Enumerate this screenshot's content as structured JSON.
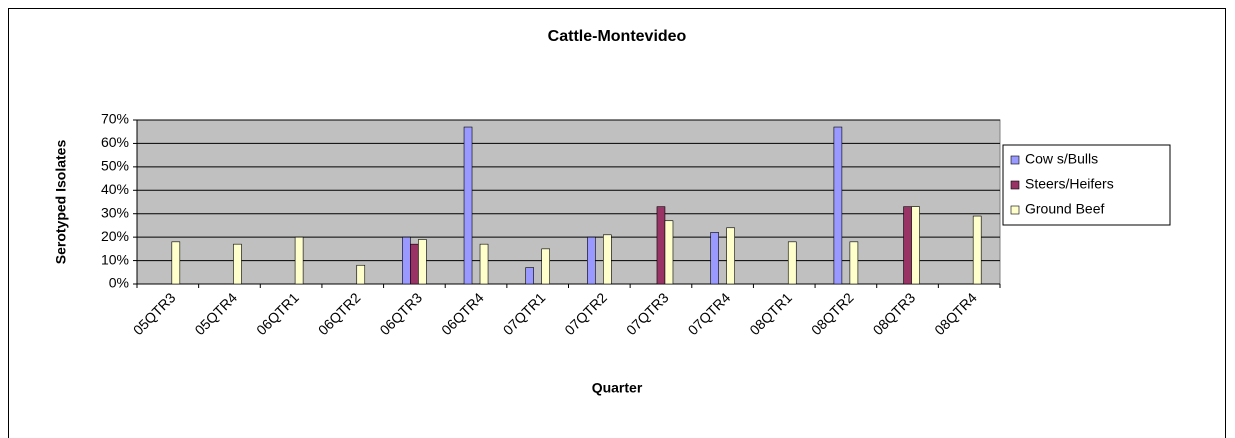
{
  "chart_data": {
    "type": "bar",
    "title": "Cattle-Montevideo",
    "x_label": "Quarter",
    "y_label": "Serotyped Isolates",
    "categories": [
      "05QTR3",
      "05QTR4",
      "06QTR1",
      "06QTR2",
      "06QTR3",
      "06QTR4",
      "07QTR1",
      "07QTR2",
      "07QTR3",
      "07QTR4",
      "08QTR1",
      "08QTR2",
      "08QTR3",
      "08QTR4"
    ],
    "series": [
      {
        "name": "Cow s/Bulls",
        "color": "#9999ff",
        "values": [
          0,
          0,
          0,
          0,
          20,
          67,
          7,
          20,
          0,
          22,
          0,
          67,
          0,
          0
        ]
      },
      {
        "name": "Steers/Heifers",
        "color": "#993366",
        "values": [
          0,
          0,
          0,
          0,
          17,
          0,
          0,
          0,
          33,
          0,
          0,
          0,
          33,
          0
        ]
      },
      {
        "name": "Ground Beef",
        "color": "#ffffcc",
        "values": [
          18,
          17,
          20,
          8,
          19,
          17,
          15,
          21,
          27,
          24,
          18,
          18,
          33,
          29
        ]
      }
    ],
    "ylim": [
      0,
      70
    ],
    "yticks": [
      {
        "value": 0,
        "label": "0%"
      },
      {
        "value": 10,
        "label": "10%"
      },
      {
        "value": 20,
        "label": "20%"
      },
      {
        "value": 30,
        "label": "30%"
      },
      {
        "value": 40,
        "label": "40%"
      },
      {
        "value": 50,
        "label": "50%"
      },
      {
        "value": 60,
        "label": "60%"
      },
      {
        "value": 70,
        "label": "70%"
      }
    ],
    "grid": true,
    "legend": "right",
    "plot_background": "#c0c0c0"
  }
}
